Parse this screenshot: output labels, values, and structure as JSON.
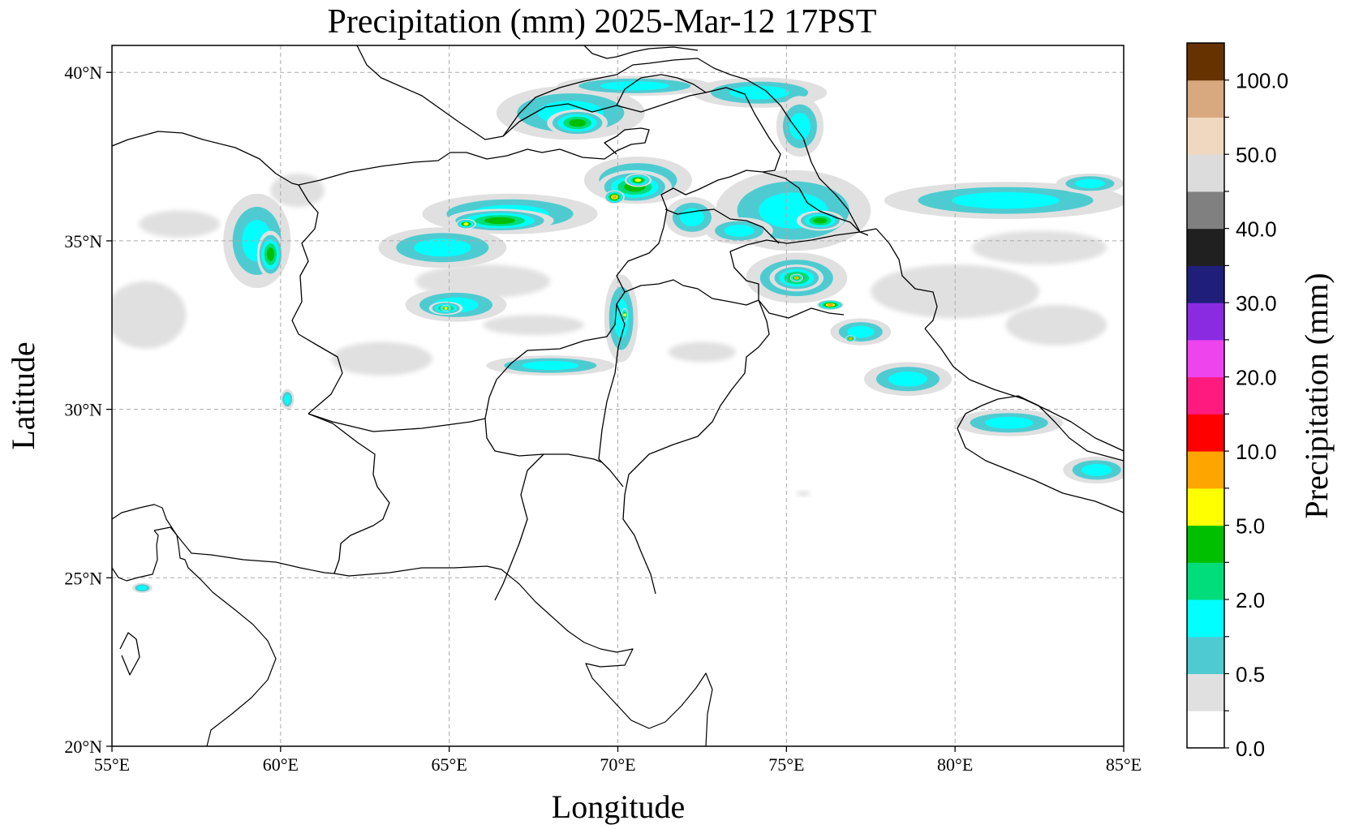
{
  "map": {
    "title": "Precipitation (mm)  2025-Mar-12 17PST",
    "xlabel": "Longitude",
    "ylabel": "Latitude",
    "lon_range": [
      55,
      85
    ],
    "lat_range": [
      20,
      40.8
    ],
    "x_ticks": [
      "55°E",
      "60°E",
      "65°E",
      "70°E",
      "75°E",
      "80°E",
      "85°E"
    ],
    "y_ticks": [
      "20°N",
      "25°N",
      "30°N",
      "35°N",
      "40°N"
    ],
    "x_tick_values": [
      55,
      60,
      65,
      70,
      75,
      80,
      85
    ],
    "y_tick_values": [
      20,
      25,
      30,
      35,
      40
    ]
  },
  "colorbar": {
    "label": "Precipitation (mm)",
    "bins": [
      {
        "color": "#ffffff",
        "label": "0.0"
      },
      {
        "color": "#e0e0e0",
        "label": ""
      },
      {
        "color": "#4ecbd1",
        "label": "0.5"
      },
      {
        "color": "#00ffff",
        "label": ""
      },
      {
        "color": "#00dd7a",
        "label": "2.0"
      },
      {
        "color": "#00bf00",
        "label": ""
      },
      {
        "color": "#ffff00",
        "label": "5.0"
      },
      {
        "color": "#ffa500",
        "label": ""
      },
      {
        "color": "#ff0000",
        "label": "10.0"
      },
      {
        "color": "#ff1a80",
        "label": ""
      },
      {
        "color": "#ee44ee",
        "label": "20.0"
      },
      {
        "color": "#8a2be2",
        "label": ""
      },
      {
        "color": "#1f1f7a",
        "label": "30.0"
      },
      {
        "color": "#202020",
        "label": ""
      },
      {
        "color": "#808080",
        "label": "40.0"
      },
      {
        "color": "#dcdcdc",
        "label": ""
      },
      {
        "color": "#f0d8c0",
        "label": "50.0"
      },
      {
        "color": "#d8a87e",
        "label": ""
      },
      {
        "color": "#663300",
        "label": "100.0"
      }
    ]
  },
  "precip_cells": [
    {
      "lon": 70.6,
      "lat": 36.8,
      "rx": 1.6,
      "ry": 0.7,
      "level": 3
    },
    {
      "lon": 70.5,
      "lat": 36.6,
      "rx": 1.1,
      "ry": 0.5,
      "level": 5
    },
    {
      "lon": 70.6,
      "lat": 36.8,
      "rx": 0.4,
      "ry": 0.2,
      "level": 6
    },
    {
      "lon": 69.9,
      "lat": 36.3,
      "rx": 0.3,
      "ry": 0.2,
      "level": 7
    },
    {
      "lon": 66.8,
      "lat": 35.8,
      "rx": 2.6,
      "ry": 0.6,
      "level": 3
    },
    {
      "lon": 66.5,
      "lat": 35.6,
      "rx": 1.6,
      "ry": 0.35,
      "level": 5
    },
    {
      "lon": 65.5,
      "lat": 35.5,
      "rx": 0.3,
      "ry": 0.15,
      "level": 6
    },
    {
      "lon": 64.8,
      "lat": 34.8,
      "rx": 1.9,
      "ry": 0.6,
      "level": 3
    },
    {
      "lon": 65.2,
      "lat": 33.1,
      "rx": 1.5,
      "ry": 0.5,
      "level": 3
    },
    {
      "lon": 64.9,
      "lat": 33.0,
      "rx": 0.5,
      "ry": 0.2,
      "level": 5
    },
    {
      "lon": 64.9,
      "lat": 33.0,
      "rx": 0.15,
      "ry": 0.1,
      "level": 6
    },
    {
      "lon": 68.6,
      "lat": 38.8,
      "rx": 2.2,
      "ry": 0.8,
      "level": 3
    },
    {
      "lon": 68.8,
      "lat": 38.5,
      "rx": 0.9,
      "ry": 0.4,
      "level": 5
    },
    {
      "lon": 70.5,
      "lat": 39.6,
      "rx": 2.3,
      "ry": 0.3,
      "level": 3
    },
    {
      "lon": 74.2,
      "lat": 39.4,
      "rx": 2.0,
      "ry": 0.45,
      "level": 3
    },
    {
      "lon": 75.4,
      "lat": 38.4,
      "rx": 0.7,
      "ry": 0.9,
      "level": 3
    },
    {
      "lon": 75.2,
      "lat": 35.9,
      "rx": 2.3,
      "ry": 1.2,
      "level": 3
    },
    {
      "lon": 76.0,
      "lat": 35.6,
      "rx": 0.7,
      "ry": 0.3,
      "level": 5
    },
    {
      "lon": 75.3,
      "lat": 33.9,
      "rx": 1.5,
      "ry": 0.75,
      "level": 3
    },
    {
      "lon": 75.3,
      "lat": 33.9,
      "rx": 0.8,
      "ry": 0.4,
      "level": 5
    },
    {
      "lon": 75.3,
      "lat": 33.9,
      "rx": 0.2,
      "ry": 0.12,
      "level": 7
    },
    {
      "lon": 76.3,
      "lat": 33.1,
      "rx": 0.4,
      "ry": 0.15,
      "level": 7
    },
    {
      "lon": 77.2,
      "lat": 32.3,
      "rx": 0.9,
      "ry": 0.4,
      "level": 3
    },
    {
      "lon": 76.9,
      "lat": 32.1,
      "rx": 0.15,
      "ry": 0.1,
      "level": 7
    },
    {
      "lon": 78.6,
      "lat": 30.9,
      "rx": 1.3,
      "ry": 0.5,
      "level": 3
    },
    {
      "lon": 81.6,
      "lat": 29.6,
      "rx": 1.6,
      "ry": 0.4,
      "level": 3
    },
    {
      "lon": 84.2,
      "lat": 28.2,
      "rx": 1.0,
      "ry": 0.4,
      "level": 3
    },
    {
      "lon": 81.5,
      "lat": 36.2,
      "rx": 3.6,
      "ry": 0.55,
      "level": 3
    },
    {
      "lon": 84.0,
      "lat": 36.7,
      "rx": 1.0,
      "ry": 0.3,
      "level": 3
    },
    {
      "lon": 59.3,
      "lat": 35.0,
      "rx": 1.0,
      "ry": 1.4,
      "level": 3
    },
    {
      "lon": 59.7,
      "lat": 34.6,
      "rx": 0.4,
      "ry": 0.7,
      "level": 5
    },
    {
      "lon": 70.1,
      "lat": 32.7,
      "rx": 0.5,
      "ry": 1.3,
      "level": 3
    },
    {
      "lon": 70.2,
      "lat": 32.8,
      "rx": 0.1,
      "ry": 0.2,
      "level": 6
    },
    {
      "lon": 68.0,
      "lat": 31.3,
      "rx": 1.9,
      "ry": 0.3,
      "level": 3
    },
    {
      "lon": 72.2,
      "lat": 35.7,
      "rx": 0.8,
      "ry": 0.6,
      "level": 3
    },
    {
      "lon": 73.6,
      "lat": 35.3,
      "rx": 1.0,
      "ry": 0.4,
      "level": 3
    },
    {
      "lon": 55.9,
      "lat": 24.7,
      "rx": 0.3,
      "ry": 0.15,
      "level": 3
    },
    {
      "lon": 60.2,
      "lat": 30.3,
      "rx": 0.2,
      "ry": 0.3,
      "level": 3
    }
  ],
  "drizzle_cells": [
    {
      "lon": 56.0,
      "lat": 32.8,
      "rx": 1.2,
      "ry": 1.0
    },
    {
      "lon": 57.0,
      "lat": 35.5,
      "rx": 1.2,
      "ry": 0.4
    },
    {
      "lon": 63.0,
      "lat": 31.5,
      "rx": 1.5,
      "ry": 0.5
    },
    {
      "lon": 67.5,
      "lat": 32.5,
      "rx": 1.5,
      "ry": 0.3
    },
    {
      "lon": 72.5,
      "lat": 31.7,
      "rx": 1.0,
      "ry": 0.3
    },
    {
      "lon": 80.0,
      "lat": 33.5,
      "rx": 2.5,
      "ry": 0.8
    },
    {
      "lon": 82.5,
      "lat": 34.8,
      "rx": 2.0,
      "ry": 0.5
    },
    {
      "lon": 83.0,
      "lat": 32.5,
      "rx": 1.5,
      "ry": 0.6
    },
    {
      "lon": 60.5,
      "lat": 36.5,
      "rx": 0.8,
      "ry": 0.5
    },
    {
      "lon": 66.0,
      "lat": 33.8,
      "rx": 2.0,
      "ry": 0.5
    },
    {
      "lon": 75.5,
      "lat": 27.5,
      "rx": 0.2,
      "ry": 0.08
    }
  ]
}
